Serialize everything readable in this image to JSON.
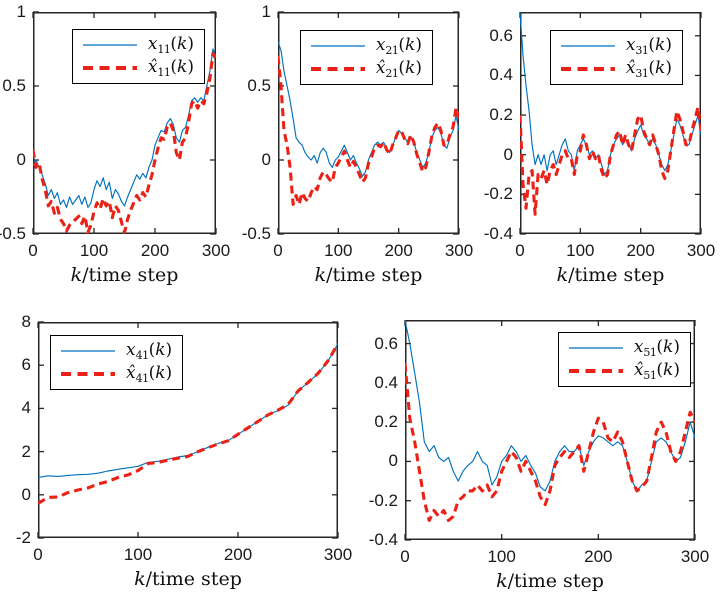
{
  "figure": {
    "background": "#ffffff",
    "colors": {
      "line_state": "#0072bd",
      "line_estimate": "#ec2115",
      "axis": "#262626",
      "tick_label": "#1a1a1a",
      "legend_border": "#000000"
    }
  },
  "chart_data": [
    {
      "type": "line",
      "id": "x11",
      "title": "",
      "xlabel_var": "k",
      "xlabel_rest": "/time step",
      "xlim": [
        0,
        300
      ],
      "ylim": [
        -0.5,
        1
      ],
      "xtick_values": [
        0,
        100,
        200,
        300
      ],
      "xtick_labels": [
        "0",
        "100",
        "200",
        "300"
      ],
      "ytick_values": [
        1,
        0.5,
        0,
        -0.5
      ],
      "ytick_labels": [
        "1",
        "0.5",
        "0",
        "-0.5"
      ],
      "grid": false,
      "legend_pos": "northeast",
      "series": [
        {
          "name": "x11(k)",
          "base": "x",
          "hat": false,
          "sub": "11",
          "arg": "k",
          "style": "solid",
          "color_key": "line_state",
          "x0": 0,
          "dx": 5,
          "y": [
            -0.04,
            0.0,
            -0.05,
            -0.1,
            -0.16,
            -0.24,
            -0.2,
            -0.26,
            -0.22,
            -0.3,
            -0.27,
            -0.32,
            -0.25,
            -0.3,
            -0.27,
            -0.24,
            -0.3,
            -0.25,
            -0.32,
            -0.29,
            -0.2,
            -0.14,
            -0.18,
            -0.12,
            -0.2,
            -0.15,
            -0.26,
            -0.2,
            -0.23,
            -0.28,
            -0.31,
            -0.25,
            -0.2,
            -0.15,
            -0.1,
            -0.13,
            -0.09,
            -0.12,
            -0.05,
            0.0,
            0.1,
            0.15,
            0.2,
            0.19,
            0.25,
            0.28,
            0.24,
            0.15,
            0.12,
            0.2,
            0.22,
            0.3,
            0.4,
            0.42,
            0.39,
            0.42,
            0.4,
            0.5,
            0.6,
            0.75,
            0.7
          ]
        },
        {
          "name": "xhat11(k)",
          "base": "x",
          "hat": true,
          "sub": "11",
          "arg": "k",
          "style": "dashed",
          "color_key": "line_estimate",
          "x0": 0,
          "dx": 5,
          "y": [
            0.07,
            -0.05,
            -0.02,
            -0.13,
            -0.2,
            -0.31,
            -0.28,
            -0.36,
            -0.32,
            -0.4,
            -0.43,
            -0.48,
            -0.44,
            -0.42,
            -0.4,
            -0.38,
            -0.43,
            -0.38,
            -0.49,
            -0.44,
            -0.35,
            -0.29,
            -0.33,
            -0.26,
            -0.31,
            -0.28,
            -0.39,
            -0.31,
            -0.34,
            -0.42,
            -0.49,
            -0.4,
            -0.34,
            -0.29,
            -0.24,
            -0.27,
            -0.22,
            -0.25,
            -0.17,
            -0.1,
            0.0,
            0.08,
            0.15,
            0.14,
            0.22,
            0.25,
            0.2,
            0.05,
            0.0,
            0.12,
            0.15,
            0.25,
            0.38,
            0.4,
            0.35,
            0.4,
            0.38,
            0.45,
            0.55,
            0.72,
            0.68
          ]
        }
      ]
    },
    {
      "type": "line",
      "id": "x21",
      "title": "",
      "xlabel_var": "k",
      "xlabel_rest": "/time step",
      "xlim": [
        0,
        300
      ],
      "ylim": [
        -0.5,
        1
      ],
      "xtick_values": [
        0,
        100,
        200,
        300
      ],
      "xtick_labels": [
        "0",
        "100",
        "200",
        "300"
      ],
      "ytick_values": [
        1,
        0.5,
        0,
        -0.5
      ],
      "ytick_labels": [
        "1",
        "0.5",
        "0",
        "-0.5"
      ],
      "grid": false,
      "legend_pos": "northeast",
      "series": [
        {
          "name": "x21(k)",
          "base": "x",
          "hat": false,
          "sub": "21",
          "arg": "k",
          "style": "solid",
          "color_key": "line_state",
          "x0": 0,
          "dx": 5,
          "y": [
            0.8,
            0.74,
            0.6,
            0.5,
            0.4,
            0.28,
            0.15,
            0.12,
            0.1,
            0.05,
            0.02,
            0.0,
            0.03,
            -0.02,
            0.05,
            0.08,
            0.05,
            -0.02,
            -0.05,
            0.0,
            0.02,
            0.06,
            0.1,
            0.05,
            0.0,
            0.03,
            -0.02,
            -0.06,
            -0.11,
            -0.08,
            0.0,
            0.05,
            0.1,
            0.12,
            0.1,
            0.12,
            0.08,
            0.05,
            0.1,
            0.15,
            0.2,
            0.18,
            0.15,
            0.12,
            0.16,
            0.12,
            0.05,
            0.0,
            -0.05,
            -0.02,
            0.05,
            0.15,
            0.2,
            0.22,
            0.18,
            0.1,
            0.08,
            0.15,
            0.2,
            0.3,
            0.2
          ]
        },
        {
          "name": "xhat21(k)",
          "base": "x",
          "hat": true,
          "sub": "21",
          "arg": "k",
          "style": "dashed",
          "color_key": "line_estimate",
          "x0": 0,
          "dx": 5,
          "y": [
            0.7,
            0.5,
            0.2,
            0.1,
            -0.05,
            -0.3,
            -0.24,
            -0.3,
            -0.22,
            -0.26,
            -0.28,
            -0.22,
            -0.18,
            -0.2,
            -0.12,
            -0.08,
            -0.1,
            -0.13,
            -0.15,
            -0.05,
            -0.02,
            0.02,
            0.06,
            0.0,
            -0.05,
            -0.01,
            -0.05,
            -0.1,
            -0.15,
            -0.12,
            -0.02,
            0.02,
            0.08,
            0.1,
            0.09,
            0.12,
            0.07,
            0.04,
            0.1,
            0.15,
            0.2,
            0.19,
            0.14,
            0.11,
            0.17,
            0.12,
            0.04,
            -0.02,
            -0.08,
            -0.05,
            0.05,
            0.16,
            0.22,
            0.25,
            0.2,
            0.1,
            0.1,
            0.17,
            0.22,
            0.35,
            0.28
          ]
        }
      ]
    },
    {
      "type": "line",
      "id": "x31",
      "title": "",
      "xlabel_var": "k",
      "xlabel_rest": "/time step",
      "xlim": [
        0,
        300
      ],
      "ylim": [
        -0.4,
        0.72
      ],
      "xtick_values": [
        0,
        100,
        200,
        300
      ],
      "xtick_labels": [
        "0",
        "100",
        "200",
        "300"
      ],
      "ytick_values": [
        0.6,
        0.4,
        0.2,
        0,
        -0.2,
        -0.4
      ],
      "ytick_labels": [
        "0.6",
        "0.4",
        "0.2",
        "0",
        "-0.2",
        "-0.4"
      ],
      "grid": false,
      "legend_pos": "northeast",
      "series": [
        {
          "name": "x31(k)",
          "base": "x",
          "hat": false,
          "sub": "31",
          "arg": "k",
          "style": "solid",
          "color_key": "line_state",
          "x0": 0,
          "dx": 5,
          "y": [
            0.72,
            0.5,
            0.35,
            0.22,
            0.05,
            -0.05,
            0.0,
            -0.05,
            0.0,
            -0.08,
            0.0,
            0.02,
            -0.05,
            0.0,
            0.05,
            0.08,
            0.02,
            0.0,
            -0.08,
            0.02,
            0.05,
            0.08,
            0.05,
            0.0,
            0.02,
            -0.02,
            0.0,
            -0.05,
            -0.1,
            -0.08,
            0.0,
            0.05,
            0.08,
            0.1,
            0.05,
            0.08,
            0.05,
            0.02,
            0.08,
            0.12,
            0.15,
            0.1,
            0.08,
            0.05,
            0.08,
            0.05,
            0.0,
            -0.05,
            -0.08,
            -0.05,
            0.02,
            0.1,
            0.18,
            0.15,
            0.1,
            0.05,
            0.05,
            0.1,
            0.15,
            0.2,
            0.1
          ]
        },
        {
          "name": "xhat31(k)",
          "base": "x",
          "hat": true,
          "sub": "31",
          "arg": "k",
          "style": "dashed",
          "color_key": "line_estimate",
          "x0": 0,
          "dx": 5,
          "y": [
            0.2,
            -0.15,
            -0.27,
            -0.1,
            -0.08,
            -0.3,
            -0.1,
            -0.12,
            -0.08,
            -0.15,
            -0.08,
            -0.05,
            -0.1,
            -0.05,
            0.0,
            0.02,
            -0.02,
            -0.02,
            -0.1,
            0.0,
            0.02,
            0.1,
            0.05,
            -0.02,
            0.02,
            -0.02,
            0.0,
            -0.08,
            -0.12,
            -0.1,
            0.0,
            0.05,
            0.1,
            0.12,
            0.05,
            0.1,
            0.05,
            0.02,
            0.1,
            0.18,
            0.2,
            0.12,
            0.08,
            0.05,
            0.1,
            0.05,
            0.0,
            -0.08,
            -0.12,
            -0.08,
            0.02,
            0.12,
            0.22,
            0.18,
            0.12,
            0.05,
            0.05,
            0.12,
            0.18,
            0.24,
            0.12
          ]
        }
      ]
    },
    {
      "type": "line",
      "id": "x41",
      "title": "",
      "xlabel_var": "k",
      "xlabel_rest": "/time step",
      "xlim": [
        0,
        300
      ],
      "ylim": [
        -2,
        8
      ],
      "xtick_values": [
        0,
        100,
        200,
        300
      ],
      "xtick_labels": [
        "0",
        "100",
        "200",
        "300"
      ],
      "ytick_values": [
        8,
        6,
        4,
        2,
        0,
        -2
      ],
      "ytick_labels": [
        "8",
        "6",
        "4",
        "2",
        "0",
        "-2"
      ],
      "grid": false,
      "legend_pos": "northwest",
      "series": [
        {
          "name": "x41(k)",
          "base": "x",
          "hat": false,
          "sub": "41",
          "arg": "k",
          "style": "solid",
          "color_key": "line_state",
          "x0": 0,
          "dx": 10,
          "y": [
            0.8,
            0.88,
            0.85,
            0.9,
            0.93,
            0.95,
            1.0,
            1.1,
            1.18,
            1.25,
            1.32,
            1.5,
            1.55,
            1.65,
            1.75,
            1.82,
            2.0,
            2.2,
            2.38,
            2.5,
            2.8,
            3.1,
            3.4,
            3.7,
            3.9,
            4.15,
            4.8,
            5.2,
            5.6,
            6.2,
            7.0
          ]
        },
        {
          "name": "xhat41(k)",
          "base": "x",
          "hat": true,
          "sub": "41",
          "arg": "k",
          "style": "dashed",
          "color_key": "line_estimate",
          "x0": 0,
          "dx": 10,
          "y": [
            -0.4,
            -0.12,
            -0.1,
            0.1,
            0.22,
            0.32,
            0.5,
            0.62,
            0.8,
            0.92,
            1.12,
            1.45,
            1.5,
            1.6,
            1.7,
            1.78,
            2.0,
            2.18,
            2.35,
            2.5,
            2.8,
            3.1,
            3.4,
            3.7,
            3.92,
            4.18,
            4.8,
            5.2,
            5.62,
            6.2,
            7.0
          ]
        }
      ]
    },
    {
      "type": "line",
      "id": "x51",
      "title": "",
      "xlabel_var": "k",
      "xlabel_rest": "/time step",
      "xlim": [
        0,
        300
      ],
      "ylim": [
        -0.4,
        0.72
      ],
      "xtick_values": [
        0,
        100,
        200,
        300
      ],
      "xtick_labels": [
        "0",
        "100",
        "200",
        "300"
      ],
      "ytick_values": [
        0.6,
        0.4,
        0.2,
        0,
        -0.2,
        -0.4
      ],
      "ytick_labels": [
        "0.6",
        "0.4",
        "0.2",
        "0",
        "-0.2",
        "-0.4"
      ],
      "grid": false,
      "legend_pos": "northeast",
      "series": [
        {
          "name": "x51(k)",
          "base": "x",
          "hat": false,
          "sub": "51",
          "arg": "k",
          "style": "solid",
          "color_key": "line_state",
          "x0": 0,
          "dx": 5,
          "y": [
            0.72,
            0.6,
            0.45,
            0.3,
            0.1,
            0.05,
            0.08,
            0.02,
            0.0,
            0.02,
            -0.05,
            -0.1,
            -0.05,
            -0.02,
            0.0,
            0.05,
            0.0,
            -0.02,
            -0.12,
            -0.08,
            0.0,
            0.03,
            0.08,
            0.05,
            0.0,
            0.03,
            -0.02,
            -0.06,
            -0.13,
            -0.15,
            -0.1,
            0.0,
            0.05,
            0.08,
            0.05,
            0.05,
            0.08,
            -0.02,
            0.05,
            0.1,
            0.13,
            0.12,
            0.1,
            0.08,
            0.1,
            0.08,
            0.0,
            -0.1,
            -0.15,
            -0.12,
            -0.1,
            0.0,
            0.1,
            0.12,
            0.1,
            0.05,
            0.0,
            0.02,
            0.1,
            0.2,
            0.12
          ]
        },
        {
          "name": "xhat51(k)",
          "base": "x",
          "hat": true,
          "sub": "51",
          "arg": "k",
          "style": "dashed",
          "color_key": "line_estimate",
          "x0": 0,
          "dx": 5,
          "y": [
            0.5,
            0.22,
            0.1,
            -0.05,
            -0.2,
            -0.3,
            -0.25,
            -0.28,
            -0.25,
            -0.3,
            -0.28,
            -0.2,
            -0.18,
            -0.15,
            -0.15,
            -0.12,
            -0.15,
            -0.12,
            -0.18,
            -0.15,
            -0.05,
            0.0,
            0.05,
            0.02,
            -0.05,
            0.0,
            -0.05,
            -0.1,
            -0.18,
            -0.22,
            -0.15,
            -0.02,
            0.02,
            0.05,
            0.02,
            0.05,
            0.08,
            -0.05,
            0.05,
            0.15,
            0.22,
            0.2,
            0.12,
            0.1,
            0.15,
            0.1,
            0.0,
            -0.1,
            -0.15,
            -0.13,
            -0.1,
            0.02,
            0.15,
            0.2,
            0.15,
            0.05,
            0.0,
            0.05,
            0.15,
            0.25,
            0.2
          ]
        }
      ]
    }
  ]
}
